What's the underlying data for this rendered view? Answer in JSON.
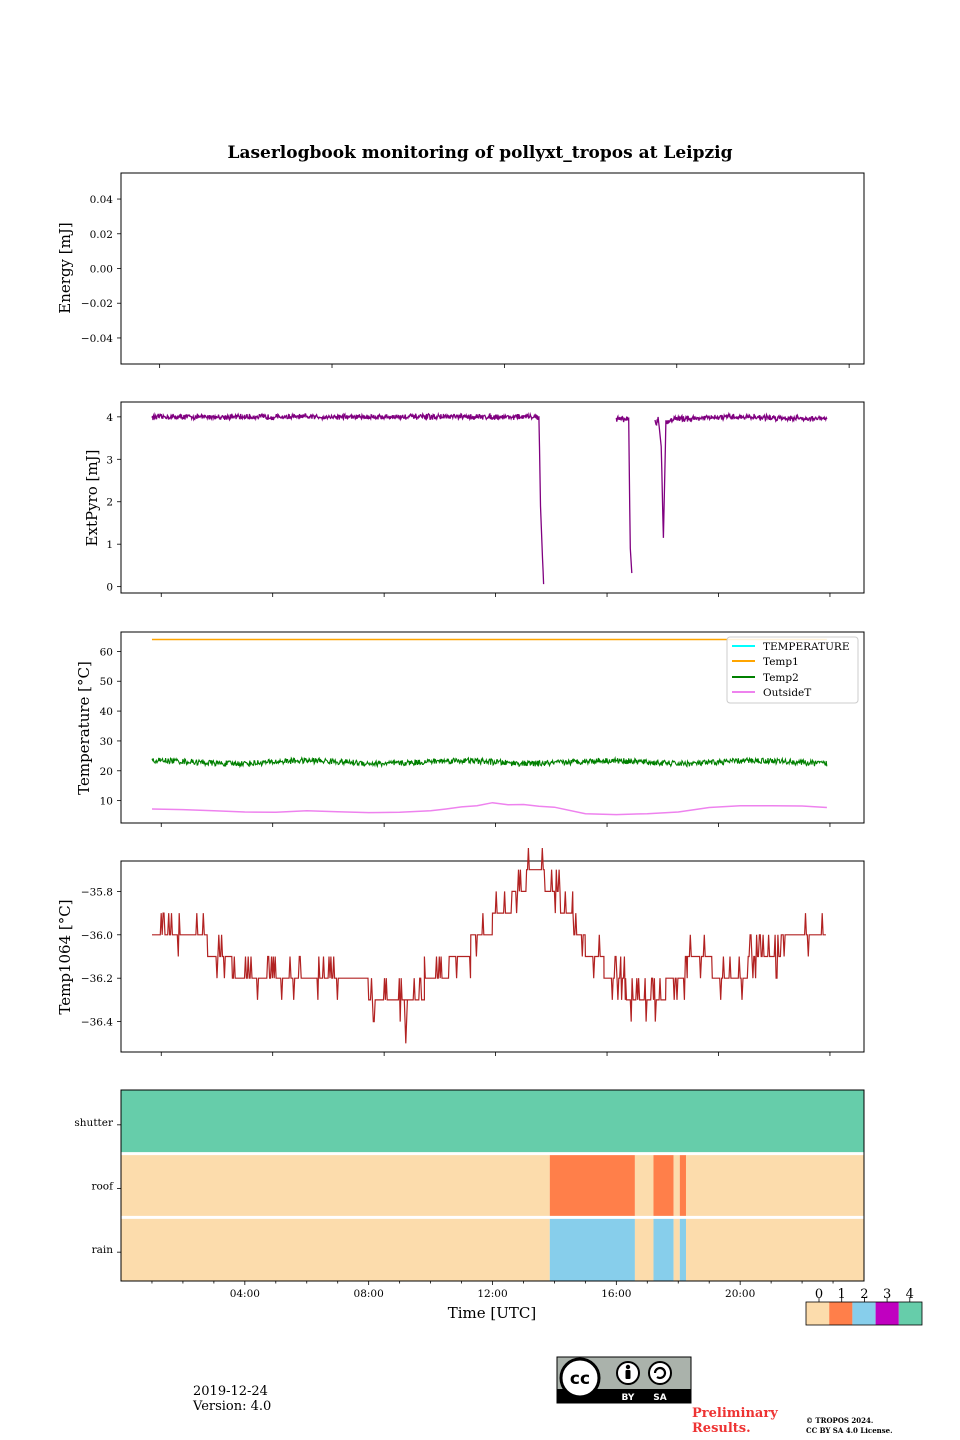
{
  "title": "Laserlogbook monitoring of pollyxt_tropos at Leipzig",
  "footer": {
    "date": "2019-12-24",
    "version": "Version: 4.0",
    "preliminary": "Preliminary Results.",
    "copyright_line1": "© TROPOS 2024.",
    "copyright_line2": "CC BY SA 4.0 License.",
    "license_by": "BY",
    "license_sa": "SA",
    "license_cc": "cc"
  },
  "colors": {
    "extpyro": "#800080",
    "temperature": "#00ffff",
    "temp1": "#ffa500",
    "temp2": "#008000",
    "outsideT": "#ee82ee",
    "temp1064": "#b22222",
    "status": [
      "#fcdcac",
      "#ff7f4a",
      "#87ceeb",
      "#c000c0",
      "#66cdaa"
    ]
  },
  "chart_data": [
    {
      "type": "line",
      "id": "energy",
      "ylabel": "Energy [mJ]",
      "ylim": [
        -0.055,
        0.055
      ],
      "yticks": [
        0.04,
        0.02,
        0.0,
        -0.02,
        -0.04
      ],
      "ytick_labels": [
        "0.04",
        "0.02",
        "0.00",
        "−0.02",
        "−0.04"
      ],
      "series": []
    },
    {
      "type": "line",
      "id": "extpyro",
      "ylabel": "ExtPyro [mJ]",
      "xlim": [
        0,
        24
      ],
      "ylim": [
        -0.15,
        4.35
      ],
      "yticks": [
        0,
        1,
        2,
        3,
        4
      ],
      "ytick_labels": [
        "0",
        "1",
        "2",
        "3",
        "4"
      ],
      "series": [
        {
          "name": "ExtPyro",
          "segments": [
            [
              [
                1.0,
                4.0
              ],
              [
                13.2,
                4.0
              ],
              [
                13.5,
                4.0
              ],
              [
                13.55,
                1.9
              ],
              [
                13.65,
                0.06
              ]
            ],
            [
              [
                16.0,
                3.95
              ],
              [
                16.4,
                3.95
              ],
              [
                16.45,
                0.9
              ],
              [
                16.5,
                0.32
              ]
            ],
            [
              [
                17.25,
                3.9
              ],
              [
                17.3,
                3.85
              ],
              [
                17.35,
                4.0
              ],
              [
                17.45,
                3.3
              ],
              [
                17.52,
                1.15
              ],
              [
                17.6,
                3.85
              ],
              [
                17.8,
                3.95
              ],
              [
                20.0,
                4.0
              ],
              [
                21.0,
                3.98
              ],
              [
                22.8,
                3.95
              ]
            ]
          ],
          "noise": 0.05
        }
      ]
    },
    {
      "type": "line",
      "id": "temperature",
      "ylabel": "Temperature [°C]",
      "xlim": [
        0,
        24
      ],
      "ylim": [
        2.5,
        66.5
      ],
      "yticks": [
        10,
        20,
        30,
        40,
        50,
        60
      ],
      "ytick_labels": [
        "10",
        "20",
        "30",
        "40",
        "50",
        "60"
      ],
      "legend": [
        "TEMPERATURE",
        "Temp1",
        "Temp2",
        "OutsideT"
      ],
      "legend_position": "top-right",
      "series": [
        {
          "name": "TEMPERATURE",
          "x": [],
          "y": []
        },
        {
          "name": "Temp1",
          "x": [
            1.0,
            22.8
          ],
          "y": [
            64.0,
            64.0
          ]
        },
        {
          "name": "Temp2",
          "x": [
            1.0,
            22.8
          ],
          "y": [
            22.9,
            22.9
          ],
          "noise": 1.1
        },
        {
          "name": "OutsideT",
          "x": [
            1.0,
            2.0,
            3.0,
            4.0,
            5.0,
            6.0,
            7.0,
            8.0,
            9.0,
            10.0,
            10.5,
            11.0,
            11.5,
            12.0,
            12.5,
            13.0,
            13.5,
            14.0,
            15.0,
            16.0,
            17.0,
            18.0,
            19.0,
            20.0,
            21.0,
            22.0,
            22.8
          ],
          "y": [
            7.2,
            7.0,
            6.6,
            6.2,
            6.1,
            6.6,
            6.3,
            6.0,
            6.1,
            6.6,
            7.2,
            7.9,
            8.3,
            9.3,
            8.6,
            8.7,
            8.1,
            7.8,
            5.6,
            5.3,
            5.6,
            6.2,
            7.7,
            8.3,
            8.3,
            8.2,
            7.7
          ]
        }
      ]
    },
    {
      "type": "line",
      "id": "temp1064",
      "ylabel": "Temp1064 [°C]",
      "xlim": [
        0,
        24
      ],
      "ylim": [
        -36.54,
        -35.66
      ],
      "yticks": [
        -35.8,
        -36.0,
        -36.2,
        -36.4
      ],
      "ytick_labels": [
        "−35.8",
        "−36.0",
        "−36.2",
        "−36.4"
      ],
      "series": [
        {
          "name": "Temp1064",
          "levels": [
            [
              1.0,
              1.7,
              -36.0
            ],
            [
              1.7,
              2.8,
              -36.0
            ],
            [
              2.8,
              3.6,
              -36.1
            ],
            [
              3.6,
              8.0,
              -36.2
            ],
            [
              8.0,
              9.8,
              -36.3
            ],
            [
              9.8,
              10.6,
              -36.2
            ],
            [
              10.6,
              11.3,
              -36.1
            ],
            [
              11.3,
              12.0,
              -36.0
            ],
            [
              12.0,
              12.6,
              -35.9
            ],
            [
              12.6,
              13.1,
              -35.8
            ],
            [
              13.1,
              13.7,
              -35.7
            ],
            [
              13.7,
              14.2,
              -35.8
            ],
            [
              14.2,
              14.6,
              -35.9
            ],
            [
              14.6,
              15.0,
              -36.0
            ],
            [
              15.0,
              15.6,
              -36.1
            ],
            [
              15.6,
              16.3,
              -36.2
            ],
            [
              16.3,
              17.6,
              -36.3
            ],
            [
              17.6,
              18.3,
              -36.2
            ],
            [
              18.3,
              19.1,
              -36.1
            ],
            [
              19.1,
              20.2,
              -36.2
            ],
            [
              20.2,
              21.3,
              -36.1
            ],
            [
              21.3,
              22.8,
              -36.0
            ]
          ]
        }
      ]
    },
    {
      "type": "heatmap",
      "id": "status",
      "xlabel": "Time [UTC]",
      "xlim": [
        0,
        24
      ],
      "xtick_labels": [
        "04:00",
        "08:00",
        "12:00",
        "16:00",
        "20:00"
      ],
      "xticks": [
        4,
        8,
        12,
        16,
        20
      ],
      "rows": [
        "shutter",
        "roof",
        "rain"
      ],
      "colorbar_labels": [
        "0",
        "1",
        "2",
        "3",
        "4"
      ],
      "intervals": {
        "shutter": [
          [
            0.0,
            24.0,
            4
          ]
        ],
        "roof": [
          [
            0.0,
            13.85,
            0
          ],
          [
            13.85,
            16.6,
            1
          ],
          [
            16.6,
            17.2,
            0
          ],
          [
            17.2,
            17.85,
            1
          ],
          [
            17.85,
            18.05,
            0
          ],
          [
            18.05,
            18.25,
            1
          ],
          [
            18.25,
            24.0,
            0
          ]
        ],
        "rain": [
          [
            0.0,
            13.85,
            0
          ],
          [
            13.85,
            16.6,
            2
          ],
          [
            16.6,
            17.2,
            0
          ],
          [
            17.2,
            17.85,
            2
          ],
          [
            17.85,
            18.05,
            0
          ],
          [
            18.05,
            18.25,
            2
          ],
          [
            18.25,
            24.0,
            0
          ]
        ]
      }
    }
  ]
}
